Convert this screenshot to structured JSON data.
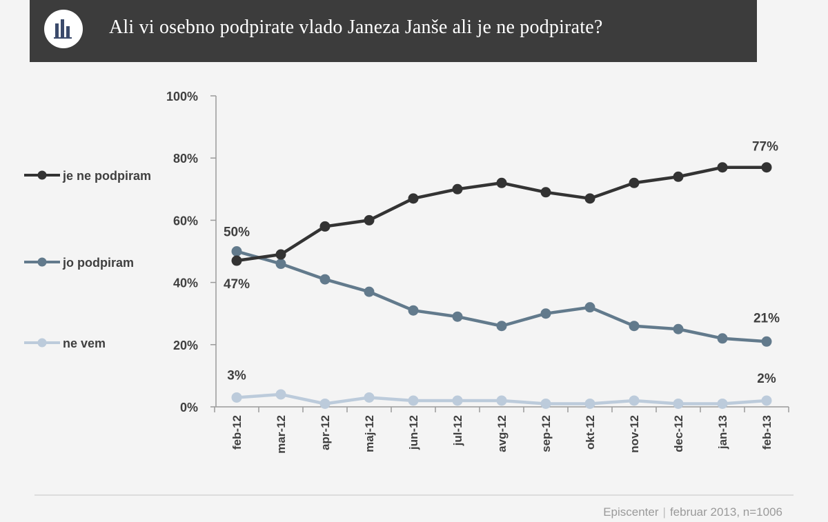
{
  "title": "Ali vi osebno podpirate vlado Janeza Janše ali je ne podpirate?",
  "logo_icon": "bar-chart-icon",
  "source": {
    "org": "Episcenter",
    "separator": "|",
    "detail": "februar 2013, n=1006"
  },
  "colors": {
    "header": "#3c3c3c",
    "je_ne": "#333333",
    "jo": "#627a8c",
    "ne_vem": "#bccbdb"
  },
  "legend": [
    {
      "label": "je ne podpiram",
      "color": "#333333"
    },
    {
      "label": "jo podpiram",
      "color": "#627a8c"
    },
    {
      "label": "ne vem",
      "color": "#bccbdb"
    }
  ],
  "chart_data": {
    "type": "line",
    "categories": [
      "feb-12",
      "mar-12",
      "apr-12",
      "maj-12",
      "jun-12",
      "jul-12",
      "avg-12",
      "sep-12",
      "okt-12",
      "nov-12",
      "dec-12",
      "jan-13",
      "feb-13"
    ],
    "ylim": [
      0,
      100
    ],
    "yticks": [
      "0%",
      "20%",
      "40%",
      "60%",
      "80%",
      "100%"
    ],
    "grid": false,
    "legend_position": "left",
    "series": [
      {
        "name": "je ne podpiram",
        "color": "#333333",
        "values": [
          47,
          49,
          58,
          60,
          67,
          70,
          72,
          69,
          67,
          72,
          74,
          77,
          77
        ]
      },
      {
        "name": "jo podpiram",
        "color": "#627a8c",
        "values": [
          50,
          46,
          41,
          37,
          31,
          29,
          26,
          30,
          32,
          26,
          25,
          22,
          21
        ]
      },
      {
        "name": "ne vem",
        "color": "#bccbdb",
        "values": [
          3,
          4,
          1,
          3,
          2,
          2,
          2,
          1,
          1,
          2,
          1,
          1,
          2
        ]
      }
    ],
    "annotations": [
      {
        "series": 1,
        "index": 0,
        "text": "50%"
      },
      {
        "series": 0,
        "index": 0,
        "text": "47%"
      },
      {
        "series": 2,
        "index": 0,
        "text": "3%"
      },
      {
        "series": 0,
        "index": 12,
        "text": "77%"
      },
      {
        "series": 1,
        "index": 12,
        "text": "21%"
      },
      {
        "series": 2,
        "index": 12,
        "text": "2%"
      }
    ]
  }
}
